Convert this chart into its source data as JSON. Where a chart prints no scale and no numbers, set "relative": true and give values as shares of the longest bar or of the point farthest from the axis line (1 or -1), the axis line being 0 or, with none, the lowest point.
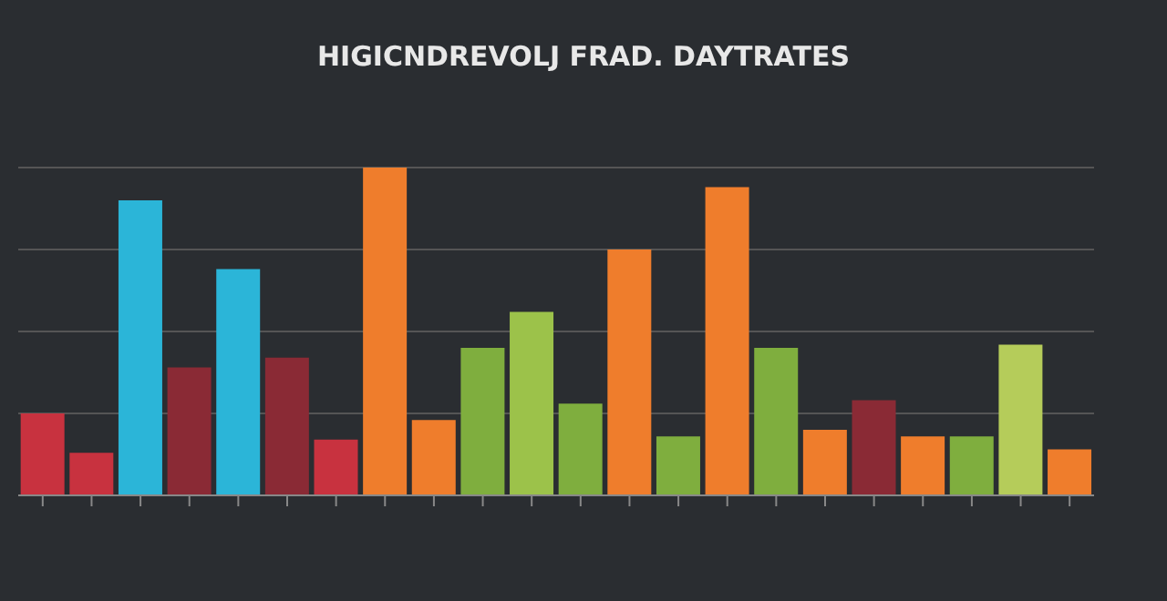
{
  "chart_data": {
    "type": "bar",
    "title": "HIGICNDREVOLJ FRAD. DAYTRATES",
    "relative": true,
    "categories": [
      null,
      null,
      null,
      null,
      null,
      null,
      null,
      null,
      null,
      null,
      null,
      null,
      null,
      null,
      null,
      null,
      null,
      null,
      null,
      null,
      null,
      null
    ],
    "values": [
      0.25,
      0.13,
      0.9,
      0.39,
      0.69,
      0.42,
      0.17,
      1,
      0.23,
      0.45,
      0.56,
      0.28,
      0.75,
      0.18,
      0.94,
      0.45,
      0.2,
      0.29,
      0.18,
      0.18,
      0.46,
      0.14
    ],
    "colors": [
      "#c8323f",
      "#c8323f",
      "#2bb5d8",
      "#8a2a35",
      "#2bb5d8",
      "#8a2a35",
      "#c8323f",
      "#ef7d2c",
      "#ef7d2c",
      "#7fae3e",
      "#9cc24a",
      "#7fae3e",
      "#ef7d2c",
      "#7fae3e",
      "#ef7d2c",
      "#7fae3e",
      "#ef7d2c",
      "#8a2a35",
      "#ef7d2c",
      "#7fae3e",
      "#b5cc5a",
      "#ef7d2c"
    ],
    "grid": "y"
  }
}
